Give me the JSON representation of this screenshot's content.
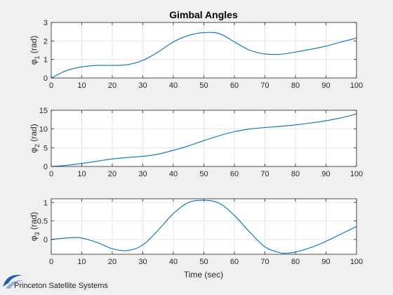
{
  "colors": {
    "series": "#0072bd",
    "brand": "#1f5ea8"
  },
  "footer": {
    "brand_text": "Princeton Satellite Systems",
    "logo_icon": "princeton-logo-icon"
  },
  "chart_data": [
    {
      "type": "line",
      "title": "Gimbal Angles",
      "ylabel_sym": "φ",
      "ylabel_sub": "1",
      "ylabel_unit": " (rad)",
      "xlabel": "",
      "xlim": [
        0,
        100
      ],
      "ylim": [
        0,
        3
      ],
      "xticks": [
        "0",
        "10",
        "20",
        "30",
        "40",
        "50",
        "60",
        "70",
        "80",
        "90",
        "100"
      ],
      "yticks": [
        "0",
        "1",
        "2",
        "3"
      ],
      "grid": true,
      "x": [
        0,
        5,
        10,
        15,
        20,
        25,
        30,
        35,
        40,
        45,
        50,
        55,
        60,
        65,
        70,
        75,
        80,
        85,
        90,
        95,
        100
      ],
      "y": [
        0.0,
        0.4,
        0.6,
        0.68,
        0.68,
        0.72,
        0.95,
        1.4,
        1.95,
        2.3,
        2.45,
        2.4,
        1.95,
        1.5,
        1.3,
        1.28,
        1.4,
        1.55,
        1.72,
        1.95,
        2.15
      ]
    },
    {
      "type": "line",
      "title": "",
      "ylabel_sym": "φ",
      "ylabel_sub": "2",
      "ylabel_unit": " (rad)",
      "xlabel": "",
      "xlim": [
        0,
        100
      ],
      "ylim": [
        0,
        15
      ],
      "xticks": [
        "0",
        "10",
        "20",
        "30",
        "40",
        "50",
        "60",
        "70",
        "80",
        "90",
        "100"
      ],
      "yticks": [
        "0",
        "5",
        "10",
        "15"
      ],
      "grid": true,
      "x": [
        0,
        5,
        10,
        15,
        20,
        25,
        30,
        35,
        40,
        45,
        50,
        55,
        60,
        65,
        70,
        75,
        80,
        85,
        90,
        95,
        100
      ],
      "y": [
        0.0,
        0.3,
        0.8,
        1.4,
        2.0,
        2.4,
        2.7,
        3.3,
        4.3,
        5.5,
        6.9,
        8.2,
        9.3,
        10.0,
        10.4,
        10.7,
        11.1,
        11.6,
        12.2,
        13.0,
        14.0
      ]
    },
    {
      "type": "line",
      "title": "",
      "ylabel_sym": "φ",
      "ylabel_sub": "3",
      "ylabel_unit": " (rad)",
      "xlabel": "Time (sec)",
      "xlim": [
        0,
        100
      ],
      "ylim": [
        -0.4,
        1.1
      ],
      "xticks": [
        "0",
        "10",
        "20",
        "30",
        "40",
        "50",
        "60",
        "70",
        "80",
        "90",
        "100"
      ],
      "yticks": [
        "0",
        "0.5",
        "1"
      ],
      "ytick_values": [
        0,
        0.5,
        1
      ],
      "grid": true,
      "x": [
        0,
        5,
        8,
        10,
        15,
        20,
        25,
        30,
        35,
        40,
        45,
        50,
        55,
        60,
        65,
        70,
        75,
        77,
        80,
        85,
        90,
        95,
        100
      ],
      "y": [
        0.0,
        0.04,
        0.05,
        0.04,
        -0.08,
        -0.25,
        -0.3,
        -0.15,
        0.25,
        0.7,
        1.0,
        1.06,
        0.98,
        0.65,
        0.2,
        -0.2,
        -0.36,
        -0.37,
        -0.34,
        -0.22,
        -0.05,
        0.15,
        0.35
      ]
    }
  ]
}
